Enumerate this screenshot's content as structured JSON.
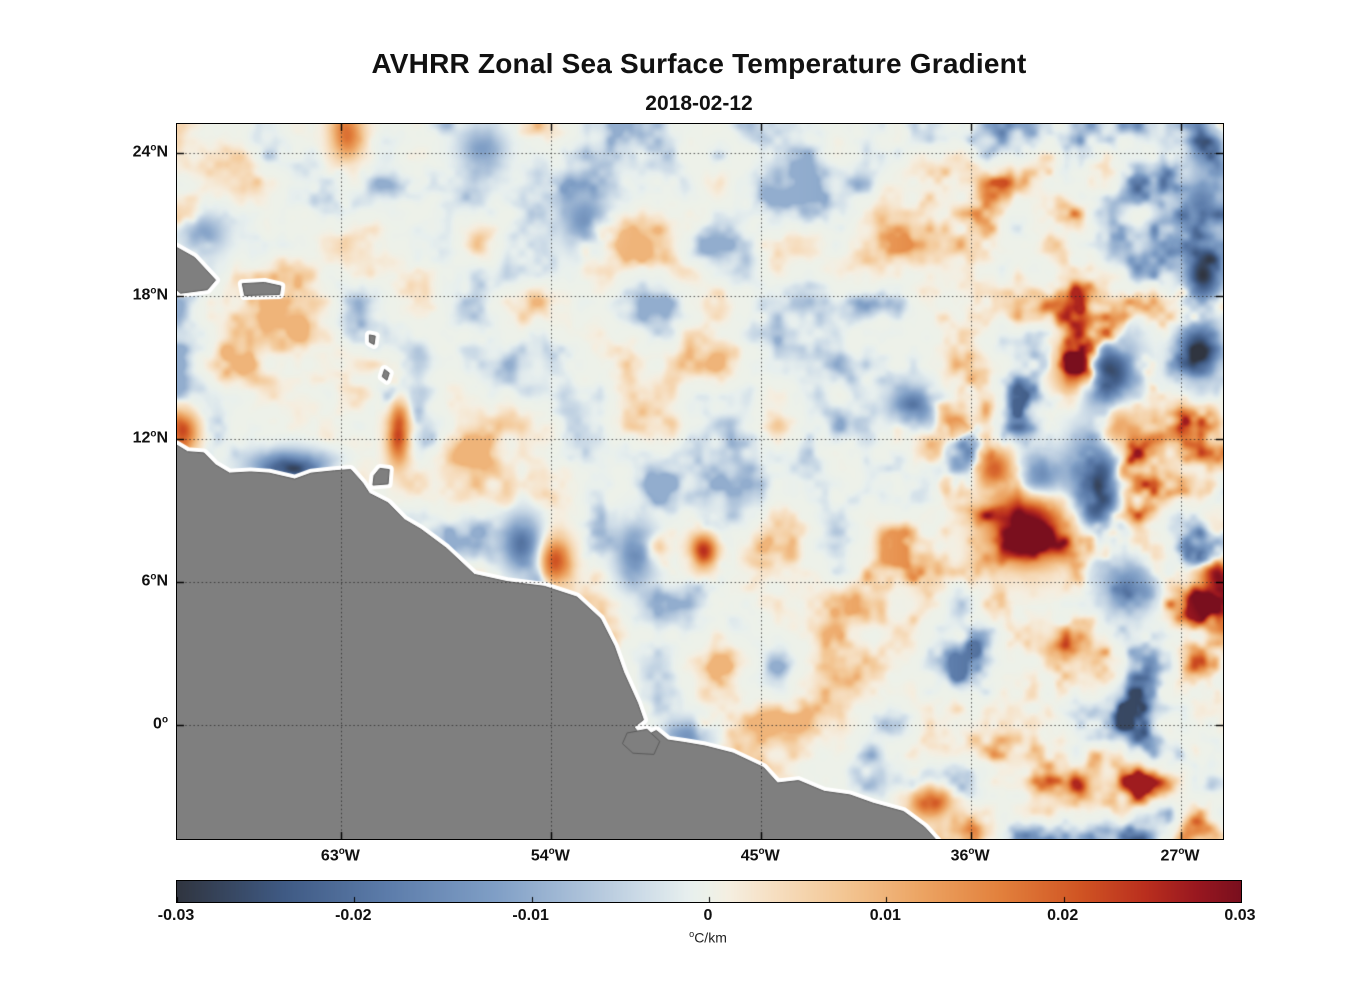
{
  "chart_data": {
    "type": "heatmap",
    "title": "AVHRR Zonal Sea Surface Temperature Gradient",
    "subtitle": "2018-02-12",
    "xlabel": "",
    "ylabel": "",
    "grid": {
      "style": "dotted",
      "color": "#2a2a2a",
      "on": true
    },
    "x_axis": {
      "range_deg_lon": [
        -70.05,
        -25.2
      ],
      "ticks": [
        {
          "value": -63,
          "deg": "63",
          "hemi": "W"
        },
        {
          "value": -54,
          "deg": "54",
          "hemi": "W"
        },
        {
          "value": -45,
          "deg": "45",
          "hemi": "W"
        },
        {
          "value": -36,
          "deg": "36",
          "hemi": "W"
        },
        {
          "value": -27,
          "deg": "27",
          "hemi": "W"
        }
      ]
    },
    "y_axis": {
      "range_deg_lat": [
        -4.8,
        25.2
      ],
      "ticks": [
        {
          "value": 24,
          "deg": "24",
          "hemi": "N"
        },
        {
          "value": 18,
          "deg": "18",
          "hemi": "N"
        },
        {
          "value": 12,
          "deg": "12",
          "hemi": "N"
        },
        {
          "value": 6,
          "deg": "6",
          "hemi": "N"
        },
        {
          "value": 0,
          "deg": "0",
          "hemi": ""
        }
      ]
    },
    "colorbar": {
      "orientation": "horizontal",
      "min": -0.03,
      "max": 0.03,
      "ticks": [
        {
          "value": -0.03,
          "label": "-0.03"
        },
        {
          "value": -0.02,
          "label": "-0.02"
        },
        {
          "value": -0.01,
          "label": "-0.01"
        },
        {
          "value": 0,
          "label": "0"
        },
        {
          "value": 0.01,
          "label": "0.01"
        },
        {
          "value": 0.02,
          "label": "0.02"
        },
        {
          "value": 0.03,
          "label": "0.03"
        }
      ],
      "unit_sup": "o",
      "unit_text": "C/km",
      "stops": [
        {
          "t": -1.0,
          "color": "#303540"
        },
        {
          "t": -0.8,
          "color": "#3f5a84"
        },
        {
          "t": -0.6,
          "color": "#5d7dab"
        },
        {
          "t": -0.4,
          "color": "#809fc6"
        },
        {
          "t": -0.25,
          "color": "#a9bfd8"
        },
        {
          "t": -0.12,
          "color": "#cfdde8"
        },
        {
          "t": -0.04,
          "color": "#e7efee"
        },
        {
          "t": 0.0,
          "color": "#edf1e9"
        },
        {
          "t": 0.04,
          "color": "#f5eee0"
        },
        {
          "t": 0.12,
          "color": "#f6dfc2"
        },
        {
          "t": 0.25,
          "color": "#f3c795"
        },
        {
          "t": 0.4,
          "color": "#eca463"
        },
        {
          "t": 0.55,
          "color": "#e2803c"
        },
        {
          "t": 0.7,
          "color": "#d05423"
        },
        {
          "t": 0.82,
          "color": "#ba2f1e"
        },
        {
          "t": 0.92,
          "color": "#98171f"
        },
        {
          "t": 1.0,
          "color": "#7a0f1e"
        }
      ]
    },
    "field": {
      "units": "degC/km",
      "value_range": [
        -0.03,
        0.03
      ],
      "noise": {
        "west_peak_amp": 0.01,
        "east_peak_amp": 0.027,
        "transition_lon": [
          -44,
          -29
        ]
      },
      "features": [
        {
          "lon": -30.2,
          "lat": 14.6,
          "sx": 0.9,
          "sy": 1.1,
          "v": -0.03
        },
        {
          "lon": -30.7,
          "lat": 9.9,
          "sx": 0.8,
          "sy": 1.5,
          "v": -0.032
        },
        {
          "lon": -33.6,
          "lat": 8.3,
          "sx": 1.2,
          "sy": 1.1,
          "v": 0.033
        },
        {
          "lon": -33.2,
          "lat": 10.4,
          "sx": 0.7,
          "sy": 0.7,
          "v": -0.02
        },
        {
          "lon": -26.1,
          "lat": 18.9,
          "sx": 0.55,
          "sy": 0.8,
          "v": -0.03
        },
        {
          "lon": -26.3,
          "lat": 15.8,
          "sx": 0.6,
          "sy": 0.8,
          "v": -0.028
        },
        {
          "lon": -25.4,
          "lat": 6.3,
          "sx": 0.6,
          "sy": 1.0,
          "v": 0.03
        },
        {
          "lon": -36.3,
          "lat": 11.4,
          "sx": 0.6,
          "sy": 0.8,
          "v": -0.026
        },
        {
          "lon": -35.2,
          "lat": 10.8,
          "sx": 0.7,
          "sy": 0.6,
          "v": 0.022
        },
        {
          "lon": -38.5,
          "lat": 13.4,
          "sx": 0.7,
          "sy": 0.55,
          "v": -0.02
        },
        {
          "lon": -60.6,
          "lat": 12.3,
          "sx": 0.35,
          "sy": 1.0,
          "v": 0.024
        },
        {
          "lon": -65.4,
          "lat": 10.9,
          "sx": 1.1,
          "sy": 0.45,
          "v": -0.02
        },
        {
          "lon": -69.8,
          "lat": 12.3,
          "sx": 0.45,
          "sy": 0.6,
          "v": 0.02
        },
        {
          "lon": -55.3,
          "lat": 7.6,
          "sx": 0.6,
          "sy": 0.8,
          "v": -0.02
        },
        {
          "lon": -53.9,
          "lat": 6.9,
          "sx": 0.5,
          "sy": 0.7,
          "v": 0.022
        },
        {
          "lon": -47.5,
          "lat": 7.3,
          "sx": 0.4,
          "sy": 0.55,
          "v": 0.026
        },
        {
          "lon": -50.4,
          "lat": 7.2,
          "sx": 0.6,
          "sy": 0.9,
          "v": -0.016
        },
        {
          "lon": -52.6,
          "lat": 21.2,
          "sx": 0.7,
          "sy": 0.9,
          "v": -0.014
        },
        {
          "lon": -62.8,
          "lat": 24.8,
          "sx": 0.5,
          "sy": 0.8,
          "v": 0.018
        },
        {
          "lon": -26.2,
          "lat": 21.9,
          "sx": 0.6,
          "sy": 0.7,
          "v": -0.018
        },
        {
          "lon": -37.8,
          "lat": -3.2,
          "sx": 0.6,
          "sy": 0.5,
          "v": 0.024
        },
        {
          "lon": -48.2,
          "lat": -0.5,
          "sx": 0.7,
          "sy": 0.5,
          "v": -0.014
        },
        {
          "lon": -29.9,
          "lat": 12.7,
          "sx": 0.7,
          "sy": 0.9,
          "v": 0.02
        },
        {
          "lon": -69.0,
          "lat": 20.6,
          "sx": 0.7,
          "sy": 0.6,
          "v": -0.012
        },
        {
          "lon": -57.0,
          "lat": 24.2,
          "sx": 0.7,
          "sy": 0.6,
          "v": -0.012
        },
        {
          "lon": -31.6,
          "lat": 14.9,
          "sx": 0.6,
          "sy": 0.9,
          "v": 0.022
        },
        {
          "lon": -29.3,
          "lat": 5.9,
          "sx": 0.8,
          "sy": 0.8,
          "v": -0.014
        },
        {
          "lon": -26.0,
          "lat": 24.2,
          "sx": 0.5,
          "sy": 0.7,
          "v": -0.016
        }
      ]
    },
    "land": {
      "fill": "#7f7f7f",
      "edge": "#5a5a5a",
      "coast_halo": "#ffffff",
      "polygons": {
        "south_america": [
          [
            -70.1,
            11.75
          ],
          [
            -69.6,
            11.45
          ],
          [
            -68.9,
            11.4
          ],
          [
            -68.4,
            10.9
          ],
          [
            -67.8,
            10.55
          ],
          [
            -66.9,
            10.6
          ],
          [
            -66.1,
            10.55
          ],
          [
            -65.0,
            10.3
          ],
          [
            -64.3,
            10.55
          ],
          [
            -63.3,
            10.65
          ],
          [
            -62.6,
            10.7
          ],
          [
            -62.1,
            10.15
          ],
          [
            -61.8,
            9.7
          ],
          [
            -61.0,
            9.3
          ],
          [
            -60.3,
            8.6
          ],
          [
            -59.6,
            8.2
          ],
          [
            -58.5,
            7.4
          ],
          [
            -57.3,
            6.3
          ],
          [
            -55.9,
            6.0
          ],
          [
            -54.3,
            5.8
          ],
          [
            -52.9,
            5.35
          ],
          [
            -51.9,
            4.45
          ],
          [
            -51.3,
            3.3
          ],
          [
            -50.9,
            2.2
          ],
          [
            -50.3,
            0.9
          ],
          [
            -50.05,
            0.2
          ],
          [
            -50.45,
            -0.1
          ],
          [
            -50.1,
            -0.55
          ],
          [
            -49.5,
            -0.25
          ],
          [
            -49.0,
            -0.65
          ],
          [
            -48.3,
            -0.75
          ],
          [
            -47.4,
            -0.9
          ],
          [
            -46.2,
            -1.2
          ],
          [
            -44.9,
            -1.8
          ],
          [
            -44.3,
            -2.45
          ],
          [
            -43.4,
            -2.35
          ],
          [
            -42.3,
            -2.8
          ],
          [
            -41.2,
            -2.95
          ],
          [
            -40.2,
            -3.3
          ],
          [
            -38.9,
            -3.65
          ],
          [
            -38.0,
            -4.3
          ],
          [
            -37.35,
            -5.0
          ],
          [
            -37.1,
            -5.8
          ],
          [
            -71.2,
            -5.8
          ],
          [
            -71.2,
            11.9
          ]
        ],
        "marajo": [
          [
            -50.75,
            -0.35
          ],
          [
            -49.9,
            -0.2
          ],
          [
            -49.35,
            -0.7
          ],
          [
            -49.6,
            -1.25
          ],
          [
            -50.5,
            -1.2
          ],
          [
            -50.95,
            -0.8
          ]
        ],
        "trinidad": [
          [
            -61.65,
            10.05
          ],
          [
            -61.0,
            10.1
          ],
          [
            -60.95,
            10.7
          ],
          [
            -61.35,
            10.75
          ],
          [
            -61.6,
            10.45
          ]
        ],
        "hispaniola_east": [
          [
            -70.12,
            20.05
          ],
          [
            -69.3,
            19.6
          ],
          [
            -68.4,
            18.65
          ],
          [
            -68.75,
            18.25
          ],
          [
            -69.9,
            18.1
          ],
          [
            -70.12,
            18.3
          ]
        ],
        "puerto_rico": [
          [
            -67.25,
            18.5
          ],
          [
            -66.3,
            18.55
          ],
          [
            -65.6,
            18.4
          ],
          [
            -65.65,
            18.05
          ],
          [
            -67.15,
            18.0
          ]
        ],
        "guadeloupe": [
          [
            -61.8,
            16.35
          ],
          [
            -61.55,
            16.3
          ],
          [
            -61.6,
            15.95
          ],
          [
            -61.8,
            16.05
          ]
        ],
        "martinique": [
          [
            -61.15,
            14.9
          ],
          [
            -60.95,
            14.75
          ],
          [
            -61.05,
            14.45
          ],
          [
            -61.25,
            14.6
          ]
        ]
      }
    }
  }
}
